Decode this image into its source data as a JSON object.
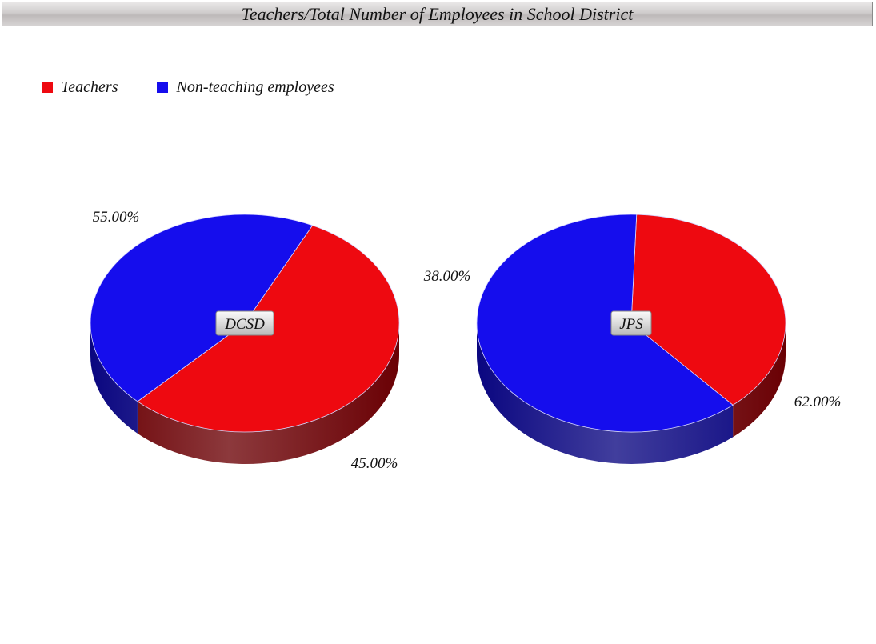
{
  "title": "Teachers/Total Number of Employees in School District",
  "chart_data": {
    "type": "pie",
    "three_d": true,
    "legend_position": "top-left",
    "series_names": [
      "Teachers",
      "Non-teaching employees"
    ],
    "colors": [
      "#ee0910",
      "#150ded"
    ],
    "side_colors": [
      "#6a0004",
      "#0a0680"
    ],
    "pies": [
      {
        "label": "DCSD",
        "values": [
          55.0,
          45.0
        ],
        "value_labels": [
          "55.00%",
          "45.00%"
        ]
      },
      {
        "label": "JPS",
        "values": [
          38.0,
          62.0
        ],
        "value_labels": [
          "38.00%",
          "62.00%"
        ]
      }
    ]
  }
}
